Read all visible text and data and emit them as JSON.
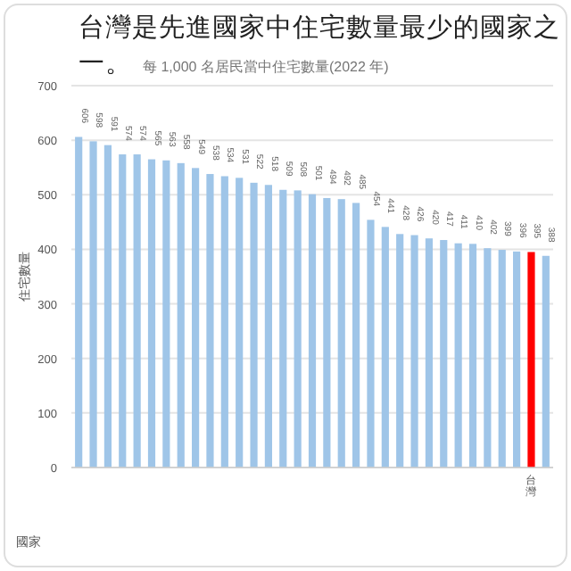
{
  "chart_data": {
    "type": "bar",
    "title": "台灣是先進國家中住宅數量最少的國家之一。",
    "subtitle": "每 1,000 名居民當中住宅數量(2022 年)",
    "xlabel": "國家",
    "ylabel": "住宅數量",
    "categories": [
      null,
      null,
      null,
      null,
      null,
      null,
      null,
      null,
      null,
      null,
      null,
      null,
      null,
      null,
      null,
      null,
      null,
      null,
      null,
      null,
      null,
      null,
      null,
      null,
      null,
      null,
      null,
      null,
      null,
      null,
      null,
      "台灣",
      null
    ],
    "values": [
      606,
      598,
      591,
      574,
      574,
      565,
      563,
      558,
      549,
      538,
      534,
      531,
      522,
      518,
      509,
      508,
      501,
      494,
      492,
      485,
      454,
      441,
      428,
      426,
      420,
      417,
      411,
      410,
      402,
      399,
      396,
      395,
      388
    ],
    "colors": [
      "#9fc5e8",
      "#9fc5e8",
      "#9fc5e8",
      "#9fc5e8",
      "#9fc5e8",
      "#9fc5e8",
      "#9fc5e8",
      "#9fc5e8",
      "#9fc5e8",
      "#9fc5e8",
      "#9fc5e8",
      "#9fc5e8",
      "#9fc5e8",
      "#9fc5e8",
      "#9fc5e8",
      "#9fc5e8",
      "#9fc5e8",
      "#9fc5e8",
      "#9fc5e8",
      "#9fc5e8",
      "#9fc5e8",
      "#9fc5e8",
      "#9fc5e8",
      "#9fc5e8",
      "#9fc5e8",
      "#9fc5e8",
      "#9fc5e8",
      "#9fc5e8",
      "#9fc5e8",
      "#9fc5e8",
      "#9fc5e8",
      "#ff0000",
      "#9fc5e8"
    ],
    "ylim": [
      0,
      700
    ],
    "yticks": [
      0,
      100,
      200,
      300,
      400,
      500,
      600,
      700
    ],
    "grid": "y",
    "data_labels": true
  }
}
